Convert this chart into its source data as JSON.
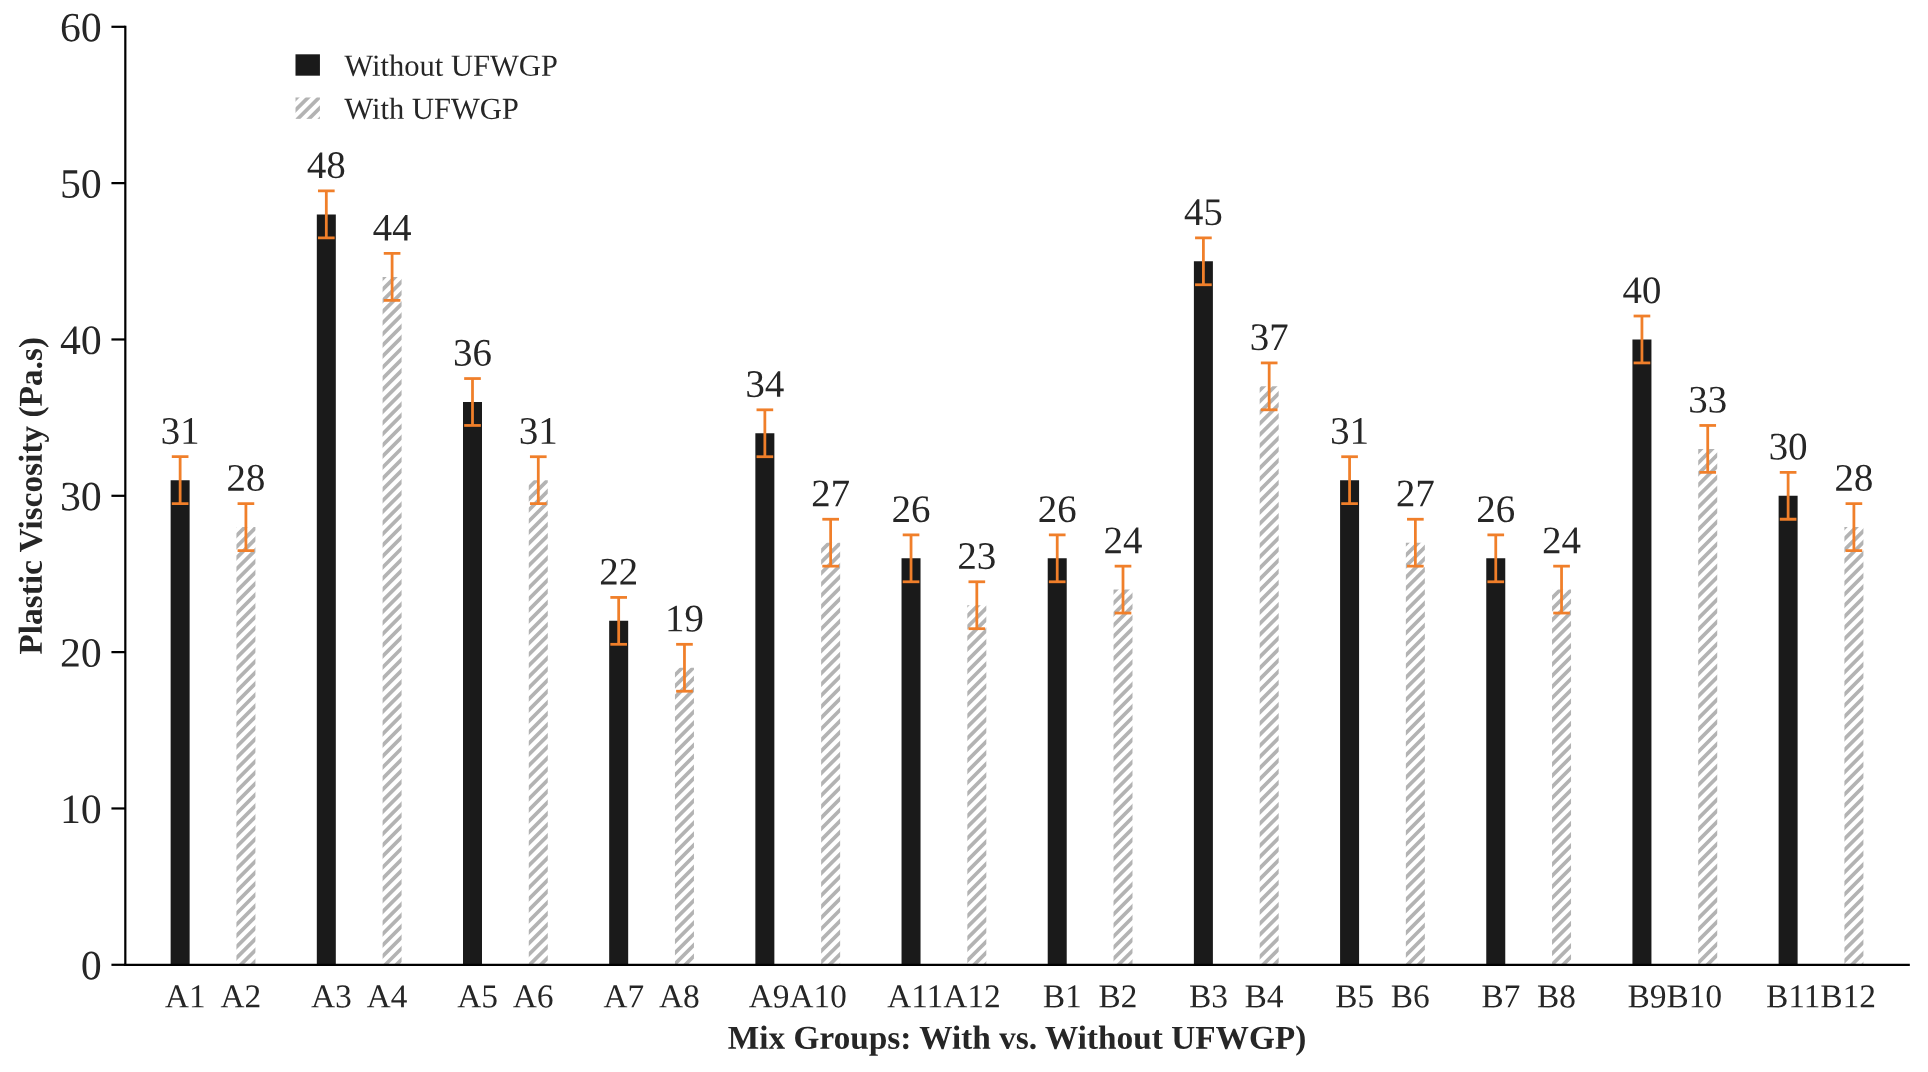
{
  "chart_data": {
    "type": "bar",
    "xlabel": "Mix Groups: With vs. Without UFWGP)",
    "ylabel": "Plastic Viscosity (Pa.s)",
    "categories": [
      "A1  A2",
      "A3  A4",
      "A5  A6",
      "A7  A8",
      "A9A10",
      "A11A12",
      "B1  B2",
      "B3  B4",
      "B5  B6",
      "B7  B8",
      "B9B10",
      "B11B12"
    ],
    "series": [
      {
        "name": "Without UFWGP",
        "color": "#1a1a1a",
        "values": [
          31,
          48,
          36,
          22,
          34,
          26,
          26,
          45,
          31,
          26,
          40,
          30
        ],
        "errors": [
          1.5,
          1.5,
          1.5,
          1.5,
          1.5,
          1.5,
          1.5,
          1.5,
          1.5,
          1.5,
          1.5,
          1.5
        ]
      },
      {
        "name": "With UFWGP",
        "color": "#b3b3b3",
        "values": [
          28,
          44,
          31,
          19,
          27,
          23,
          24,
          37,
          27,
          24,
          33,
          28
        ],
        "errors": [
          1.5,
          1.5,
          1.5,
          1.5,
          1.5,
          1.5,
          1.5,
          1.5,
          1.5,
          1.5,
          1.5,
          1.5
        ]
      }
    ],
    "ylim": [
      0,
      60
    ],
    "yticks": [
      0,
      10,
      20,
      30,
      40,
      50,
      60
    ],
    "grid": false,
    "legend": "top left",
    "data_labels": true
  }
}
